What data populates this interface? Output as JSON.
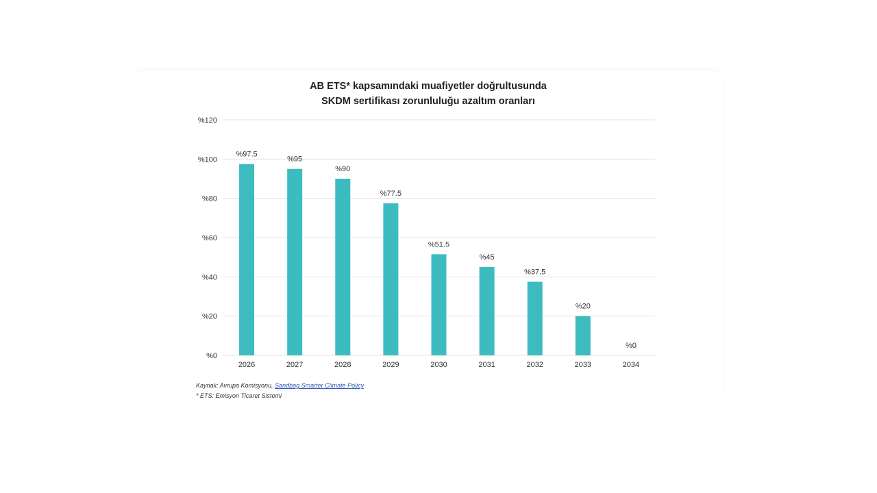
{
  "chart_data": {
    "type": "bar",
    "title_lines": [
      "AB ETS* kapsamındaki muafiyetler doğrultusunda",
      "SKDM sertifikası zorunluluğu azaltım oranları"
    ],
    "categories": [
      "2026",
      "2027",
      "2028",
      "2029",
      "2030",
      "2031",
      "2032",
      "2033",
      "2034"
    ],
    "values": [
      97.5,
      95,
      90,
      77.5,
      51.5,
      45,
      37.5,
      20,
      0
    ],
    "data_labels": [
      "%97.5",
      "%95",
      "%90",
      "%77.5",
      "%51.5",
      "%45",
      "%37.5",
      "%20",
      "%0"
    ],
    "ylim": [
      0,
      120
    ],
    "yticks": [
      0,
      20,
      40,
      60,
      80,
      100,
      120
    ],
    "ytick_labels": [
      "%0",
      "%20",
      "%40",
      "%60",
      "%80",
      "%100",
      "%120"
    ],
    "grid": true,
    "legend": "none",
    "bar_color": "#3dbcbf",
    "grid_color": "#e3e3e3"
  },
  "footnotes": {
    "source_prefix": "Kaynak: Avrupa Komisyonu, ",
    "source_link": "Sandbag Smarter Climate Policy",
    "ets_note": "* ETS: Emisyon Ticaret Sistemi"
  }
}
